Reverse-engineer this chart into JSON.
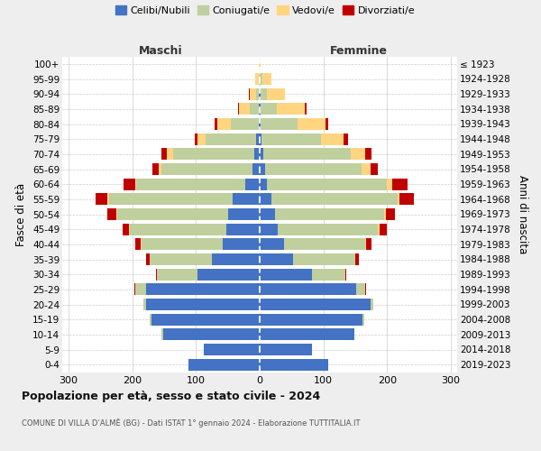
{
  "age_groups": [
    "0-4",
    "5-9",
    "10-14",
    "15-19",
    "20-24",
    "25-29",
    "30-34",
    "35-39",
    "40-44",
    "45-49",
    "50-54",
    "55-59",
    "60-64",
    "65-69",
    "70-74",
    "75-79",
    "80-84",
    "85-89",
    "90-94",
    "95-99",
    "100+"
  ],
  "birth_years": [
    "2019-2023",
    "2014-2018",
    "2009-2013",
    "2004-2008",
    "1999-2003",
    "1994-1998",
    "1989-1993",
    "1984-1988",
    "1979-1983",
    "1974-1978",
    "1969-1973",
    "1964-1968",
    "1959-1963",
    "1954-1958",
    "1949-1953",
    "1944-1948",
    "1939-1943",
    "1934-1938",
    "1929-1933",
    "1924-1928",
    "≤ 1923"
  ],
  "colors": {
    "celibi": "#4472C4",
    "coniugati": "#BFCF9E",
    "vedovi": "#FFD580",
    "divorziati": "#C00000"
  },
  "maschi": {
    "celibi": [
      112,
      88,
      152,
      170,
      178,
      178,
      98,
      75,
      58,
      52,
      50,
      42,
      22,
      12,
      8,
      5,
      2,
      1,
      1,
      0,
      0
    ],
    "coniugati": [
      0,
      0,
      2,
      3,
      5,
      18,
      63,
      98,
      128,
      152,
      173,
      195,
      172,
      142,
      128,
      80,
      44,
      14,
      5,
      2,
      0
    ],
    "vedovi": [
      0,
      0,
      0,
      0,
      0,
      0,
      0,
      0,
      1,
      1,
      2,
      2,
      2,
      5,
      10,
      12,
      20,
      18,
      10,
      5,
      1
    ],
    "divorziati": [
      0,
      0,
      0,
      0,
      0,
      1,
      2,
      5,
      8,
      10,
      14,
      18,
      18,
      10,
      8,
      5,
      5,
      1,
      1,
      0,
      0
    ]
  },
  "femmine": {
    "celibi": [
      108,
      82,
      148,
      162,
      174,
      152,
      82,
      52,
      38,
      28,
      24,
      18,
      12,
      8,
      5,
      3,
      1,
      1,
      1,
      0,
      0
    ],
    "coniugati": [
      0,
      0,
      1,
      2,
      5,
      14,
      52,
      98,
      128,
      158,
      172,
      198,
      188,
      152,
      138,
      93,
      58,
      26,
      10,
      4,
      0
    ],
    "vedovi": [
      0,
      0,
      0,
      0,
      0,
      0,
      0,
      0,
      1,
      2,
      2,
      4,
      8,
      14,
      22,
      35,
      44,
      44,
      28,
      15,
      2
    ],
    "divorziati": [
      0,
      0,
      0,
      0,
      0,
      1,
      2,
      5,
      8,
      12,
      14,
      22,
      24,
      12,
      10,
      8,
      5,
      2,
      1,
      0,
      0
    ]
  },
  "xlim": 310,
  "title": "Popolazione per età, sesso e stato civile - 2024",
  "subtitle": "COMUNE DI VILLA D’ALMÈ (BG) - Dati ISTAT 1° gennaio 2024 - Elaborazione TUTTITALIA.IT",
  "ylabel": "Fasce di età",
  "ylabel_right": "Anni di nascita",
  "bg_color": "#eeeeee",
  "plot_bg": "#ffffff"
}
